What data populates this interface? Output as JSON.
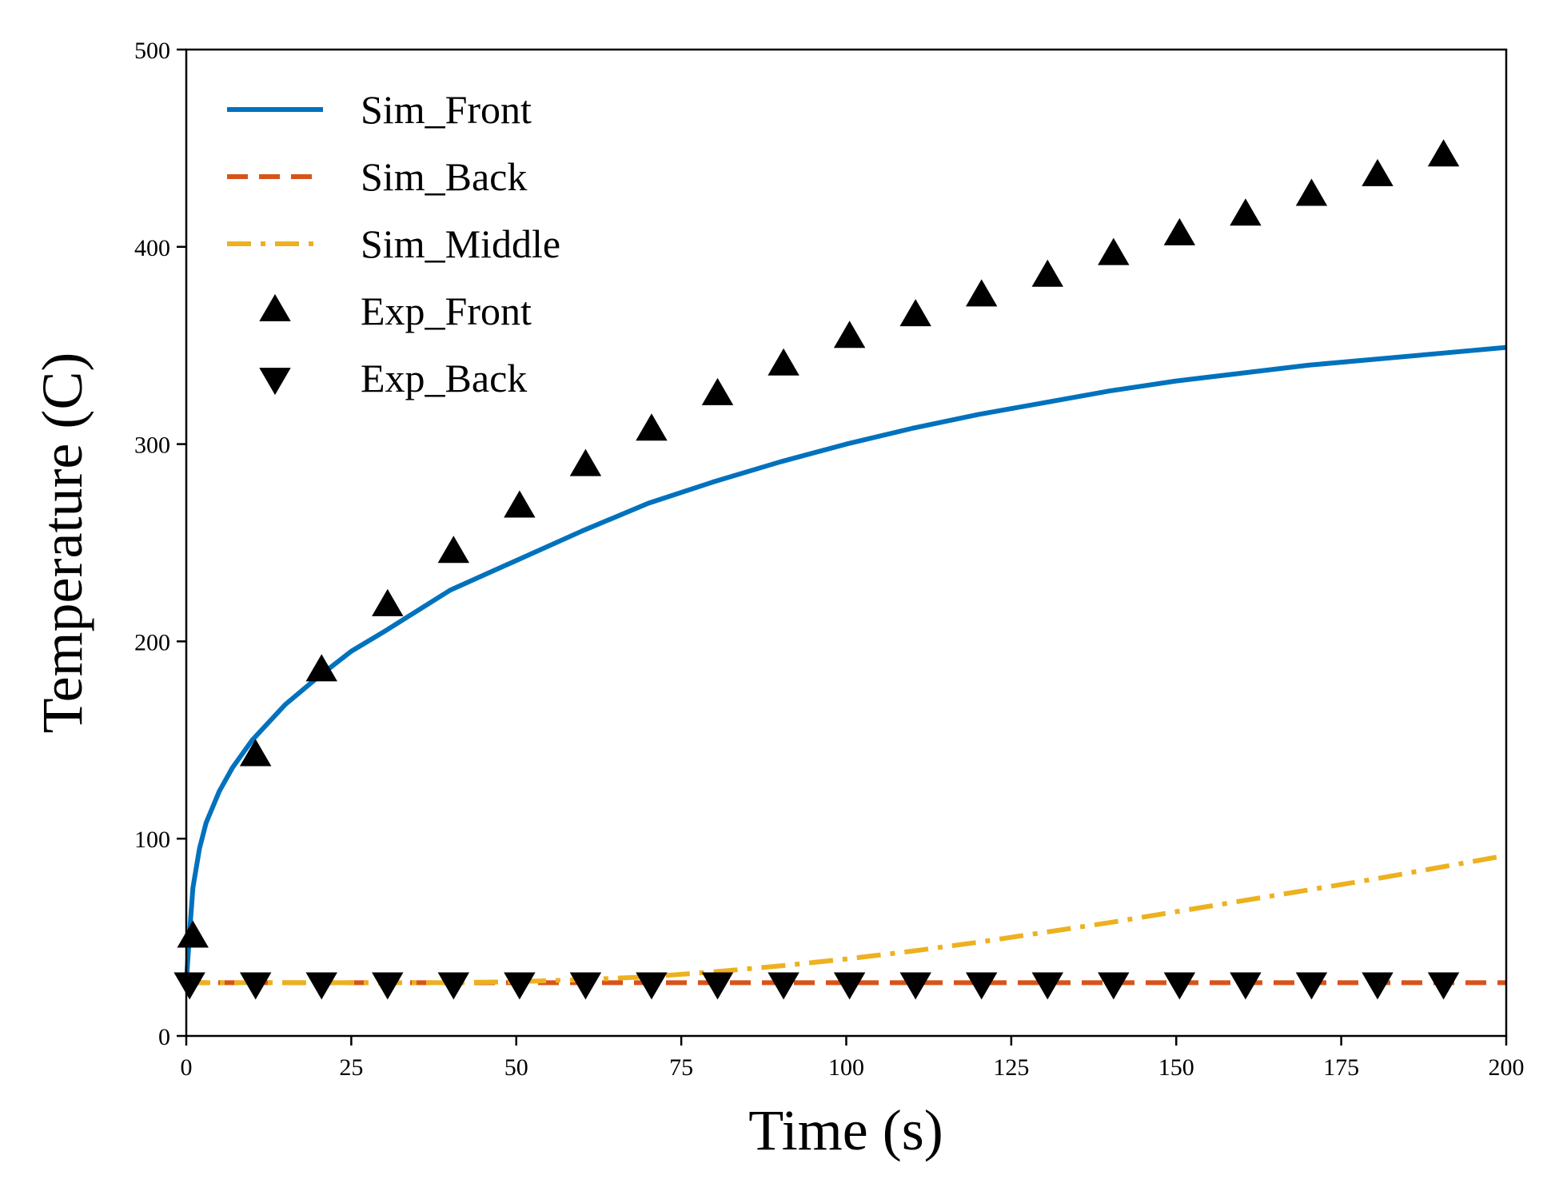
{
  "chart_data": {
    "type": "line",
    "title": "",
    "xlabel": "Time (s)",
    "ylabel": "Temperature (C)",
    "xlim": [
      0,
      200
    ],
    "ylim": [
      0,
      500
    ],
    "xticks": [
      0,
      25,
      50,
      75,
      100,
      125,
      150,
      175,
      200
    ],
    "yticks": [
      0,
      100,
      200,
      300,
      400,
      500
    ],
    "grid": false,
    "legend_position": "top-left",
    "series": [
      {
        "name": "Sim_Front",
        "kind": "line",
        "style": "solid",
        "color": "#0072BD",
        "x": [
          0,
          0.5,
          1,
          2,
          3,
          5,
          7,
          10,
          15,
          20,
          25,
          30,
          40,
          50,
          60,
          70,
          80,
          90,
          100,
          110,
          120,
          130,
          140,
          150,
          160,
          170,
          180,
          190,
          200
        ],
        "y": [
          27,
          52,
          75,
          95,
          108,
          124,
          136,
          150,
          168,
          182,
          195,
          205,
          226,
          241,
          256,
          270,
          281,
          291,
          300,
          308,
          315,
          321,
          327,
          332,
          336,
          340,
          343,
          346,
          349
        ]
      },
      {
        "name": "Sim_Back",
        "kind": "line",
        "style": "dashed",
        "color": "#D95319",
        "x": [
          0,
          25,
          50,
          75,
          100,
          125,
          150,
          175,
          200
        ],
        "y": [
          27,
          27,
          27,
          27,
          27,
          27,
          27,
          27,
          27
        ]
      },
      {
        "name": "Sim_Middle",
        "kind": "line",
        "style": "dashdot",
        "color": "#EDB120",
        "x": [
          0,
          20,
          40,
          50,
          60,
          70,
          80,
          90,
          100,
          110,
          120,
          130,
          140,
          150,
          160,
          170,
          180,
          190,
          200
        ],
        "y": [
          27,
          27,
          27,
          27.5,
          28.5,
          30,
          32.5,
          35.5,
          39,
          43,
          47.5,
          52.5,
          57.5,
          63,
          68.5,
          74,
          79.5,
          85.5,
          91.5
        ]
      },
      {
        "name": "Exp_Front",
        "kind": "marker",
        "marker": "triangle-up",
        "color": "#000000",
        "x": [
          1,
          10.5,
          20.5,
          30.5,
          40.5,
          50.5,
          60.5,
          70.5,
          80.5,
          90.5,
          100.5,
          110.5,
          120.5,
          130.5,
          140.5,
          150.5,
          160.5,
          170.5,
          180.5,
          190.5
        ],
        "y": [
          50,
          142,
          185,
          218,
          245,
          268,
          289,
          307,
          325,
          340,
          354,
          365,
          375,
          385,
          396,
          406,
          416,
          426,
          436,
          446
        ]
      },
      {
        "name": "Exp_Back",
        "kind": "marker",
        "marker": "triangle-down",
        "color": "#000000",
        "x": [
          0.5,
          10.5,
          20.5,
          30.5,
          40.5,
          50.5,
          60.5,
          70.5,
          80.5,
          90.5,
          100.5,
          110.5,
          120.5,
          130.5,
          140.5,
          150.5,
          160.5,
          170.5,
          180.5,
          190.5
        ],
        "y": [
          27,
          27,
          27,
          27,
          27,
          27,
          27,
          27,
          27,
          27,
          27,
          27,
          27,
          27,
          27,
          27,
          27,
          27,
          27,
          27
        ]
      }
    ]
  }
}
